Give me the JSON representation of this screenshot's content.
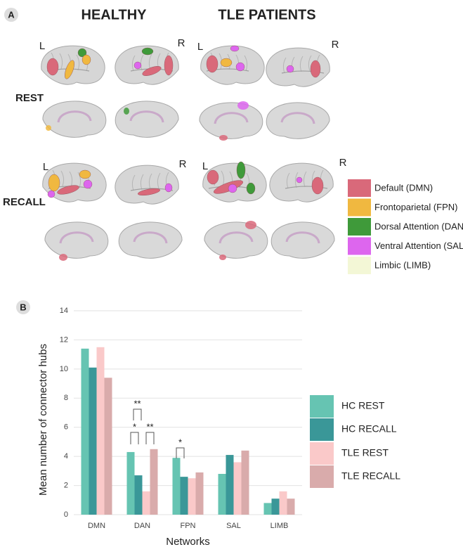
{
  "panel_a": {
    "label": "A",
    "columns": [
      "HEALTHY",
      "TLE PATIENTS"
    ],
    "rows": [
      "REST",
      "RECALL"
    ],
    "hemisphere_labels": [
      "L",
      "R",
      "L",
      "R",
      "L",
      "R",
      "L",
      "R"
    ],
    "legend": [
      {
        "name": "Default (DMN)",
        "color": "#d9697a"
      },
      {
        "name": "Frontoparietal (FPN)",
        "color": "#f0b840"
      },
      {
        "name": "Dorsal Attention (DAN",
        "color": "#3f9a3a"
      },
      {
        "name": "Ventral Attention (SAL",
        "color": "#dd66ee"
      },
      {
        "name": "Limbic (LIMB)",
        "color": "#f3f7d6"
      }
    ]
  },
  "chart_data": {
    "type": "bar",
    "panel_label": "B",
    "x_label": "Networks",
    "y_label": "Mean number of connector hubs",
    "categories": [
      "DMN",
      "DAN",
      "FPN",
      "SAL",
      "LIMB"
    ],
    "series": [
      {
        "name": "HC REST",
        "color": "#66c4b2",
        "values": [
          11.4,
          4.3,
          3.9,
          2.8,
          0.8
        ]
      },
      {
        "name": "HC RECALL",
        "color": "#3a9798",
        "values": [
          10.1,
          2.7,
          2.6,
          4.1,
          1.1
        ]
      },
      {
        "name": "TLE REST",
        "color": "#fac9c9",
        "values": [
          11.5,
          1.6,
          2.5,
          3.6,
          1.6
        ]
      },
      {
        "name": "TLE RECALL",
        "color": "#d9abab",
        "values": [
          9.4,
          4.5,
          2.9,
          4.4,
          1.1
        ]
      }
    ],
    "ylim": [
      0,
      14
    ],
    "yticks": [
      0,
      2,
      4,
      6,
      8,
      10,
      12,
      14
    ],
    "grid": true,
    "annotations": [
      "**",
      "*",
      "**",
      "*"
    ]
  }
}
